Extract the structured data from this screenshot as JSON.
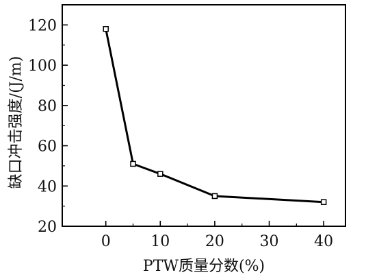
{
  "chart_data": {
    "type": "line",
    "title": "",
    "xlabel": "PTW质量分数(%)",
    "ylabel": "缺口冲击强度/(J/m)",
    "xlim": [
      -8,
      44
    ],
    "ylim": [
      20,
      130
    ],
    "xticks": [
      0,
      10,
      20,
      30,
      40
    ],
    "yticks": [
      20,
      40,
      60,
      80,
      100,
      120
    ],
    "grid": false,
    "legend": "none",
    "series": [
      {
        "x": [
          0,
          5,
          10,
          20,
          40
        ],
        "y": [
          118,
          51,
          46,
          35,
          32
        ],
        "marker": "open-square",
        "color": "#000000"
      }
    ]
  }
}
